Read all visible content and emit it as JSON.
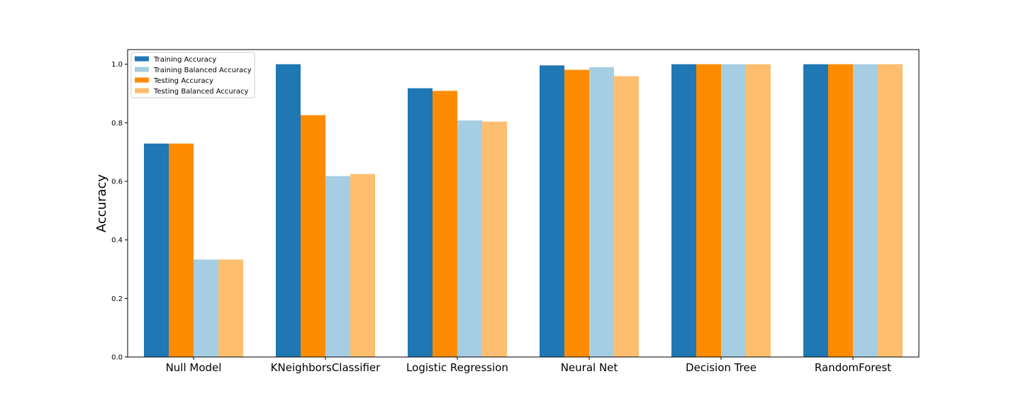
{
  "chart_data": {
    "type": "bar",
    "title": "",
    "xlabel": "",
    "ylabel": "Accuracy",
    "ylim": [
      0,
      1.05
    ],
    "yticks": [
      0.0,
      0.2,
      0.4,
      0.6,
      0.8,
      1.0
    ],
    "ytick_labels": [
      "0.0",
      "0.2",
      "0.4",
      "0.6",
      "0.8",
      "1.0"
    ],
    "grid": false,
    "legend_position": "top-left",
    "categories": [
      "Null Model",
      "KNeighborsClassifier",
      "Logistic Regression",
      "Neural Net",
      "Decision Tree",
      "RandomForest"
    ],
    "bar_order": [
      0,
      2,
      1,
      3
    ],
    "series": [
      {
        "name": "Training Accuracy",
        "color": "#1f77b4",
        "values": [
          0.729,
          1.0,
          0.918,
          0.996,
          1.0,
          1.0
        ]
      },
      {
        "name": "Training Balanced Accuracy",
        "color": "#a6cee3",
        "values": [
          0.333,
          0.618,
          0.808,
          0.99,
          1.0,
          1.0
        ]
      },
      {
        "name": "Testing Accuracy",
        "color": "#ff8c00",
        "values": [
          0.729,
          0.826,
          0.909,
          0.981,
          1.0,
          1.0
        ]
      },
      {
        "name": "Testing Balanced Accuracy",
        "color": "#fdbf6f",
        "values": [
          0.333,
          0.625,
          0.804,
          0.959,
          1.0,
          1.0
        ]
      }
    ]
  }
}
